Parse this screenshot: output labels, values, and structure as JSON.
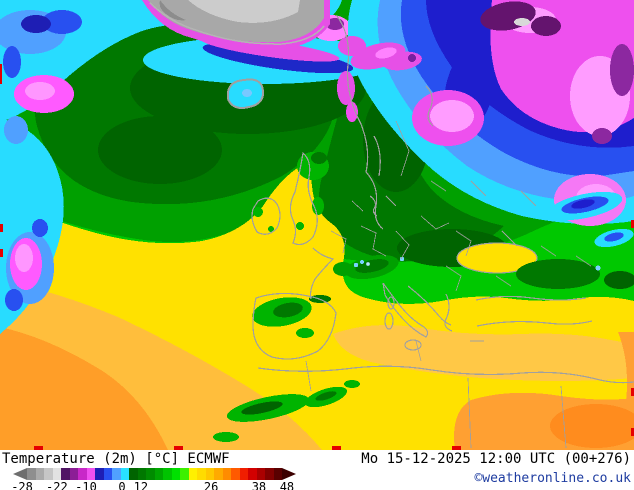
{
  "footer": {
    "title": "Temperature (2m) [°C] ECMWF",
    "datetime": "Mo 15-12-2025 12:00 UTC (00+276)",
    "copyright": "©weatheronline.co.uk",
    "copyright_color": "#1e3ca0"
  },
  "legend": {
    "unit": "°C",
    "tick_values_c": [
      -28,
      -22,
      -10,
      0,
      12,
      26,
      38,
      48
    ],
    "tick_labels": [
      {
        "text": "-28",
        "pct": 3.2
      },
      {
        "text": "-22",
        "pct": 15.5
      },
      {
        "text": "-10",
        "pct": 25.8
      },
      {
        "text": "0",
        "pct": 38.5
      },
      {
        "text": "12",
        "pct": 45.2
      },
      {
        "text": "26",
        "pct": 70.0
      },
      {
        "text": "38",
        "pct": 86.9
      },
      {
        "text": "48",
        "pct": 96.8
      }
    ],
    "left_arrow_color": "#6e6e6e",
    "right_arrow_color": "#3c0000",
    "segments": [
      "#8e8e8e",
      "#aaaaaa",
      "#c6c6c6",
      "#e2e2e2",
      "#501464",
      "#8c1e96",
      "#c828c8",
      "#f050f0",
      "#1e1eb4",
      "#2850f0",
      "#50a0ff",
      "#28e1ff",
      "#006400",
      "#007800",
      "#008c00",
      "#00a500",
      "#00c300",
      "#00e100",
      "#3cf000",
      "#fff000",
      "#ffdc00",
      "#ffc800",
      "#ffaa00",
      "#ff8c00",
      "#ff5a00",
      "#f01e00",
      "#d20000",
      "#aa0000",
      "#820000",
      "#5a0000"
    ]
  },
  "map": {
    "key_colors": {
      "deep_orange": "#ff9e28",
      "orange": "#ffbe3c",
      "yellow": "#ffe100",
      "bright_green": "#00c800",
      "green": "#00a000",
      "dark_green": "#007800",
      "darkest_green": "#006400",
      "cyan": "#28dcff",
      "light_blue": "#50a0ff",
      "blue": "#2850f0",
      "navy": "#1e1ecd",
      "magenta": "#ee50ee",
      "pink": "#ff9cff",
      "dark_purple": "#64146e",
      "icecap_gray": "#a8a8a8",
      "coastline_gray": "#a0a0a0",
      "graticule_red": "#e60000"
    }
  }
}
